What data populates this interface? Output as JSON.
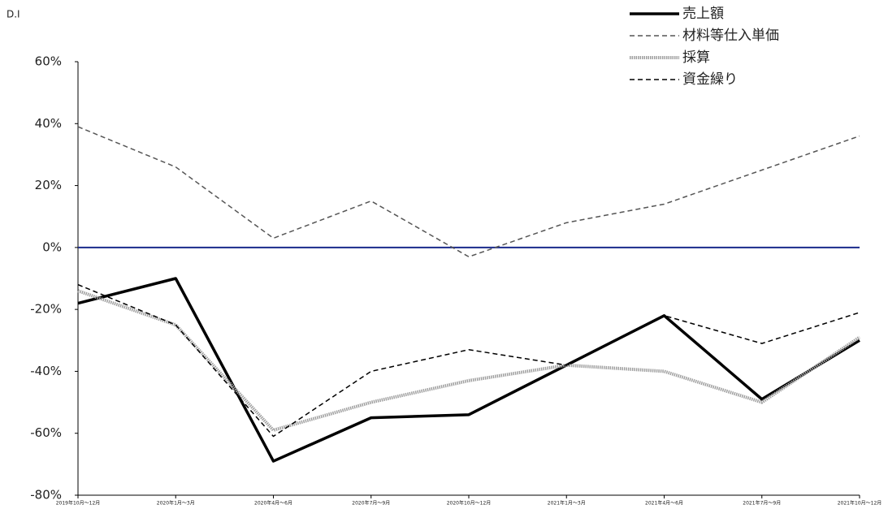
{
  "chart_data": {
    "type": "line",
    "y_axis_label": "D.I",
    "categories": [
      "2019年10月～12月",
      "2020年1月～3月",
      "2020年4月～6月",
      "2020年7月～9月",
      "2020年10月～12月",
      "2021年1月～3月",
      "2021年4月～6月",
      "2021年7月～9月",
      "2021年10月～12月"
    ],
    "series": [
      {
        "name": "売上額",
        "color": "#000000",
        "line_style": "thick",
        "values": [
          -18,
          -10,
          -69,
          -55,
          -54,
          -38,
          -22,
          -49,
          -30
        ]
      },
      {
        "name": "材料等仕入単価",
        "color": "#555555",
        "line_style": "dashed",
        "values": [
          39,
          26,
          3,
          15,
          -3,
          8,
          14,
          25,
          36
        ]
      },
      {
        "name": "採算",
        "color": "#a0a0a0",
        "line_style": "textured",
        "values": [
          -14,
          -25,
          -59,
          -50,
          -43,
          -38,
          -40,
          -50,
          -29
        ]
      },
      {
        "name": "資金繰り",
        "color": "#000000",
        "line_style": "dashed",
        "values": [
          -12,
          -25,
          -61,
          -40,
          -33,
          -38,
          -22,
          -31,
          -21
        ]
      }
    ],
    "ylim": [
      -80,
      60
    ],
    "yticks": [
      {
        "value": -80,
        "label": "-80%"
      },
      {
        "value": -60,
        "label": "-60%"
      },
      {
        "value": -40,
        "label": "-40%"
      },
      {
        "value": -20,
        "label": "-20%"
      },
      {
        "value": 0,
        "label": "0%"
      },
      {
        "value": 20,
        "label": "20%"
      },
      {
        "value": 40,
        "label": "40%"
      },
      {
        "value": 60,
        "label": "60%"
      }
    ],
    "zero_line_color": "#1a2a8c",
    "legend": "top-right"
  }
}
